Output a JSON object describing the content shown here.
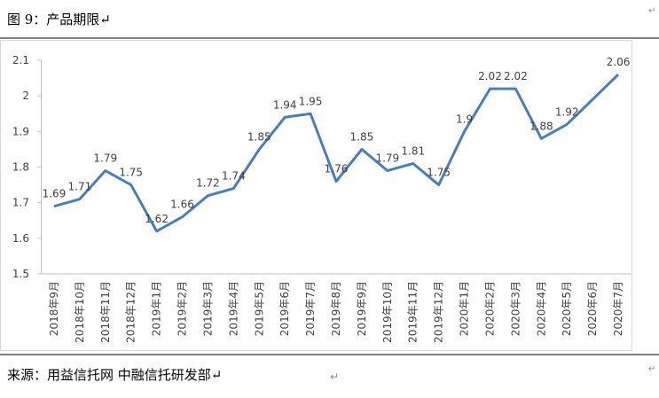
{
  "header": {
    "title": "图 9：产品期限↵",
    "corner_mark": "↵"
  },
  "chart_data": {
    "type": "line",
    "categories": [
      "2018年9月",
      "2018年10月",
      "2018年11月",
      "2018年12月",
      "2019年1月",
      "2019年2月",
      "2019年3月",
      "2019年4月",
      "2019年5月",
      "2019年6月",
      "2019年7月",
      "2019年8月",
      "2019年9月",
      "2019年10月",
      "2019年11月",
      "2019年12月",
      "2020年1月",
      "2020年2月",
      "2020年3月",
      "2020年4月",
      "2020年5月",
      "2020年6月",
      "2020年7月"
    ],
    "series": [
      {
        "name": "产品期限",
        "color": "#4a7ebb",
        "values": [
          1.69,
          1.71,
          1.79,
          1.75,
          1.62,
          1.66,
          1.72,
          1.74,
          1.85,
          1.94,
          1.95,
          1.76,
          1.85,
          1.79,
          1.81,
          1.75,
          1.9,
          2.02,
          2.02,
          1.88,
          1.92,
          1.99,
          2.06
        ],
        "value_labels": [
          "1.69",
          "1.71",
          "1.79",
          "1.75",
          "1.62",
          "1.66",
          "1.72",
          "1.74",
          "1.85",
          "1.94",
          "1.95",
          "1.76",
          "1.85",
          "1.79",
          "1.81",
          "1.75",
          "1.9",
          "2.02",
          "2.02",
          "1.88",
          "1.92",
          null,
          "2.06"
        ]
      }
    ],
    "ylim": [
      1.5,
      2.1
    ],
    "yticks": [
      1.5,
      1.6,
      1.7,
      1.8,
      1.9,
      2,
      2.1
    ],
    "grid": false
  },
  "footer": {
    "source": "来源：用益信托网  中融信托研发部↵",
    "marks": [
      "↵",
      "↵"
    ]
  }
}
